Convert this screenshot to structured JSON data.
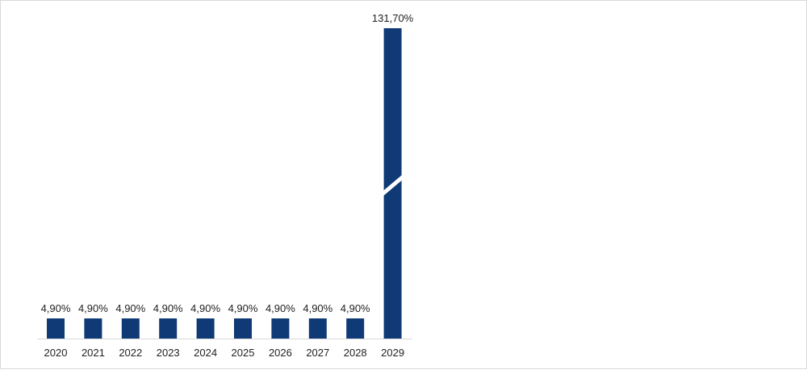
{
  "chart_data": {
    "type": "bar",
    "categories": [
      "2020",
      "2021",
      "2022",
      "2023",
      "2024",
      "2025",
      "2026",
      "2027",
      "2028",
      "2029"
    ],
    "values": [
      4.9,
      4.9,
      4.9,
      4.9,
      4.9,
      4.9,
      4.9,
      4.9,
      4.9,
      131.7
    ],
    "data_labels": [
      "4,90%",
      "4,90%",
      "4,90%",
      "4,90%",
      "4,90%",
      "4,90%",
      "4,90%",
      "4,90%",
      "4,90%",
      "131,70%"
    ],
    "axis_break": true,
    "grid": false,
    "legend": "none",
    "bar_color": "#0f3a75",
    "axis_color": "#d9d9d9",
    "title": "",
    "xlabel": "",
    "ylabel": ""
  }
}
